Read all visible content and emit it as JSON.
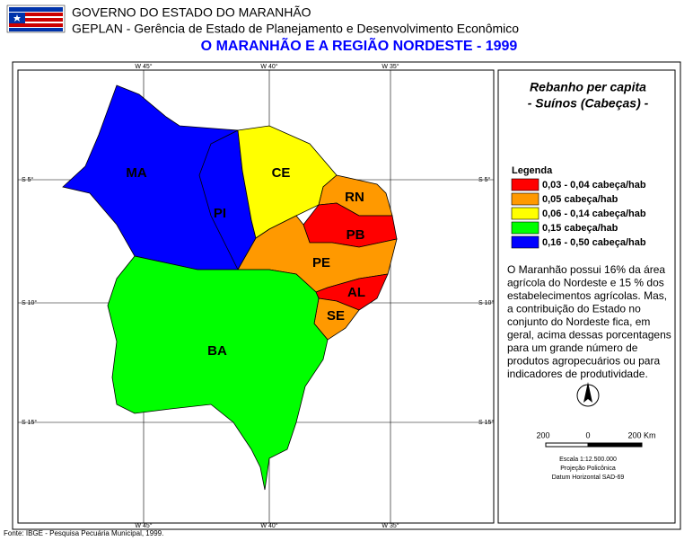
{
  "header": {
    "line1": "GOVERNO DO ESTADO DO MARANHÃO",
    "line2": "GEPLAN - Gerência de Estado de Planejamento e Desenvolvimento Econômico",
    "title": "O MARANHÃO E A REGIÃO NORDESTE - 1999"
  },
  "grid": {
    "meridians": [
      "W 45°",
      "W 40°",
      "W 35°"
    ],
    "parallels": [
      "S 5°",
      "S 10°",
      "S 15°"
    ]
  },
  "states": [
    "MA",
    "PI",
    "CE",
    "RN",
    "PB",
    "PE",
    "AL",
    "SE",
    "BA"
  ],
  "panel": {
    "title": "Rebanho per capita",
    "subtitle": "- Suínos (Cabeças) -",
    "legend_title": "Legenda",
    "legend": [
      {
        "label": "0,03 - 0,04 cabeça/hab",
        "color": "#ff0000"
      },
      {
        "label": "0,05 cabeça/hab",
        "color": "#ff9900"
      },
      {
        "label": "0,06 - 0,14 cabeça/hab",
        "color": "#ffff00"
      },
      {
        "label": "0,15 cabeça/hab",
        "color": "#00ff00"
      },
      {
        "label": "0,16 - 0,50 cabeça/hab",
        "color": "#0000ff"
      }
    ],
    "text": [
      "O Maranhão possui 16% da área",
      "agrícola do Nordeste e 15 % dos",
      "estabelecimentos agrícolas. Mas,",
      "a contribuição do Estado no",
      "conjunto do Nordeste fica, em",
      "geral, acima dessas porcentagens",
      "para um grande número de",
      "produtos agropecuários ou para",
      "indicadores de produtividade."
    ],
    "scale_labels": [
      "200",
      "0",
      "200 Km"
    ],
    "scale": "Escala 1:12.500.000",
    "projection": "Projeção Policônica",
    "datum": "Datum Horizontal SAD-69"
  },
  "footer": "Fonte: IBGE - Pesquisa Pecuária Municipal, 1999."
}
